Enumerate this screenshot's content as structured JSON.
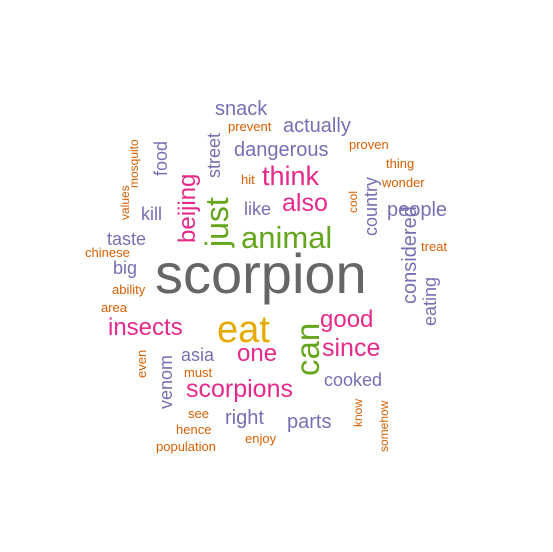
{
  "palette": {
    "gray": "#666666",
    "green": "#66a61e",
    "gold": "#e6ab02",
    "magenta": "#e7298a",
    "slate": "#7570b3",
    "orange": "#d95f02"
  },
  "words": [
    {
      "text": "scorpion",
      "color": "gray"
    },
    {
      "text": "eat",
      "color": "gold"
    },
    {
      "text": "can",
      "color": "green"
    },
    {
      "text": "animal",
      "color": "green"
    },
    {
      "text": "just",
      "color": "green"
    },
    {
      "text": "think",
      "color": "magenta"
    },
    {
      "text": "also",
      "color": "magenta"
    },
    {
      "text": "insects",
      "color": "magenta"
    },
    {
      "text": "good",
      "color": "magenta"
    },
    {
      "text": "since",
      "color": "magenta"
    },
    {
      "text": "one",
      "color": "magenta"
    },
    {
      "text": "scorpions",
      "color": "magenta"
    },
    {
      "text": "beijing",
      "color": "magenta"
    },
    {
      "text": "snack",
      "color": "slate"
    },
    {
      "text": "actually",
      "color": "slate"
    },
    {
      "text": "dangerous",
      "color": "slate"
    },
    {
      "text": "street",
      "color": "slate"
    },
    {
      "text": "food",
      "color": "slate"
    },
    {
      "text": "like",
      "color": "slate"
    },
    {
      "text": "kill",
      "color": "slate"
    },
    {
      "text": "taste",
      "color": "slate"
    },
    {
      "text": "big",
      "color": "slate"
    },
    {
      "text": "people",
      "color": "slate"
    },
    {
      "text": "country",
      "color": "slate"
    },
    {
      "text": "considered",
      "color": "slate"
    },
    {
      "text": "eating",
      "color": "slate"
    },
    {
      "text": "asia",
      "color": "slate"
    },
    {
      "text": "venom",
      "color": "slate"
    },
    {
      "text": "cooked",
      "color": "slate"
    },
    {
      "text": "right",
      "color": "slate"
    },
    {
      "text": "parts",
      "color": "slate"
    },
    {
      "text": "prevent",
      "color": "orange"
    },
    {
      "text": "proven",
      "color": "orange"
    },
    {
      "text": "thing",
      "color": "orange"
    },
    {
      "text": "wonder",
      "color": "orange"
    },
    {
      "text": "hit",
      "color": "orange"
    },
    {
      "text": "cool",
      "color": "orange"
    },
    {
      "text": "treat",
      "color": "orange"
    },
    {
      "text": "mosquito",
      "color": "orange"
    },
    {
      "text": "values",
      "color": "orange"
    },
    {
      "text": "chinese",
      "color": "orange"
    },
    {
      "text": "ability",
      "color": "orange"
    },
    {
      "text": "area",
      "color": "orange"
    },
    {
      "text": "even",
      "color": "orange"
    },
    {
      "text": "must",
      "color": "orange"
    },
    {
      "text": "see",
      "color": "orange"
    },
    {
      "text": "hence",
      "color": "orange"
    },
    {
      "text": "population",
      "color": "orange"
    },
    {
      "text": "enjoy",
      "color": "orange"
    },
    {
      "text": "know",
      "color": "orange"
    },
    {
      "text": "somehow",
      "color": "orange"
    }
  ]
}
